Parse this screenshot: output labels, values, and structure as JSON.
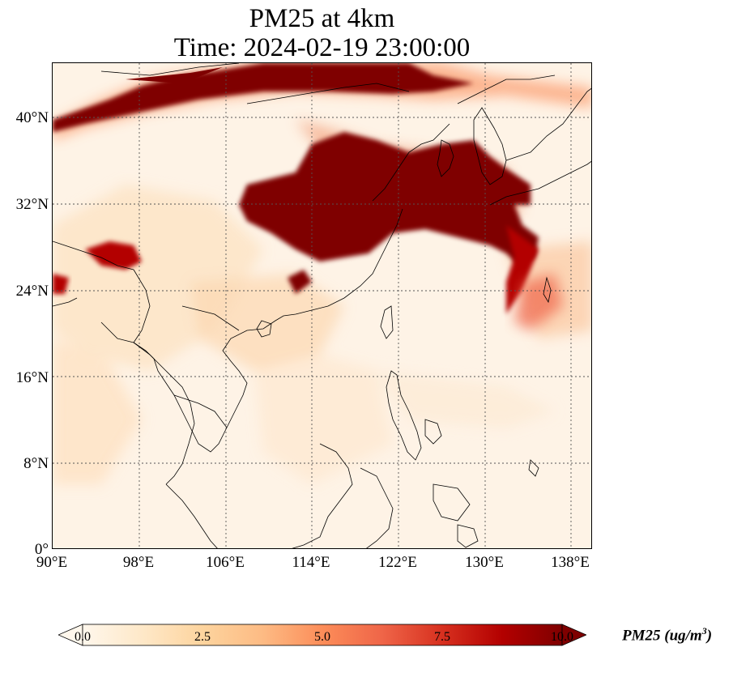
{
  "title": {
    "line1": "PM25 at 4km",
    "line2": "Time: 2024-02-19 23:00:00"
  },
  "map": {
    "lon_range": [
      90,
      140
    ],
    "lat_range": [
      0,
      45
    ],
    "x_ticks": [
      "90°E",
      "98°E",
      "106°E",
      "114°E",
      "122°E",
      "130°E",
      "138°E"
    ],
    "y_ticks": [
      "40°N",
      "32°N",
      "24°N",
      "16°N",
      "8°N",
      "0°"
    ],
    "gridlines": true
  },
  "colorbar": {
    "title": "PM25 (ug/m",
    "title_sup": "3",
    "title_close": ")",
    "ticks": [
      "0.0",
      "2.5",
      "5.0",
      "7.5",
      "10.0"
    ],
    "colors": [
      "#fff7ec",
      "#fee8c8",
      "#fdd49e",
      "#fdbb84",
      "#fc8d59",
      "#ef6548",
      "#d7301f",
      "#b30000",
      "#7f0000"
    ]
  }
}
